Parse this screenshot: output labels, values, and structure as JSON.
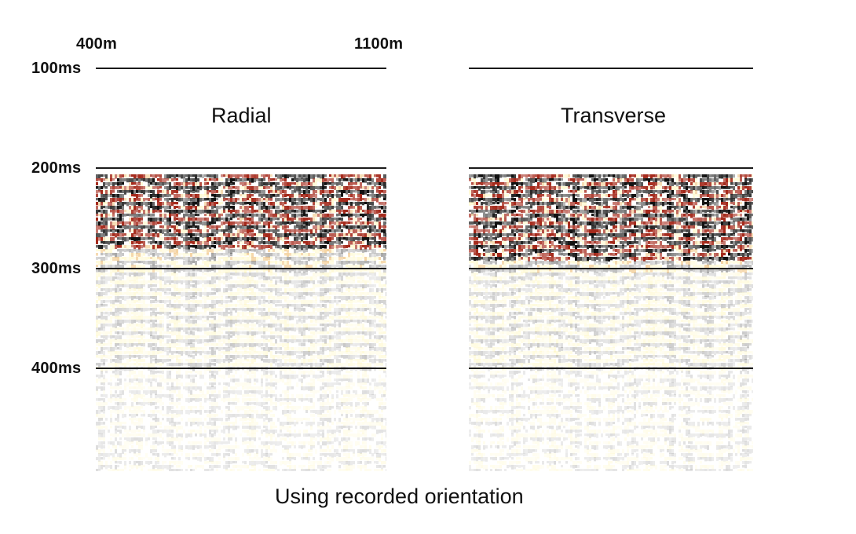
{
  "distance_labels": {
    "start": "400m",
    "end": "1100m"
  },
  "time_labels": [
    "100ms",
    "200ms",
    "300ms",
    "400ms"
  ],
  "panels": [
    {
      "title": "Radial"
    },
    {
      "title": "Transverse"
    }
  ],
  "caption": "Using recorded orientation",
  "colors": {
    "trough": "#111111",
    "peak_strong": "#a52a1c",
    "peak_mid": "#e8a23a",
    "peak_weak": "#fff3a0",
    "grid": "#1a1a1a"
  }
}
